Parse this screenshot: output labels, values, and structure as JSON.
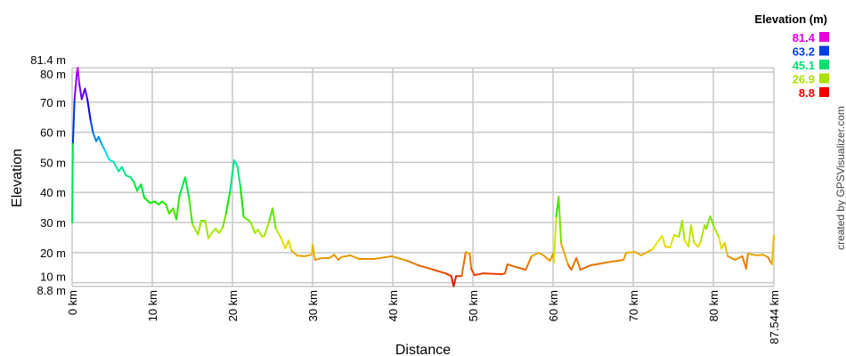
{
  "chart_data": {
    "type": "line",
    "title": "",
    "xlabel": "Distance",
    "ylabel": "Elevation",
    "xlim": [
      0,
      87.544
    ],
    "ylim": [
      8.8,
      81.4
    ],
    "grid": true,
    "x_ticks": [
      "0 km",
      "10 km",
      "20 km",
      "30 km",
      "40 km",
      "50 km",
      "60 km",
      "70 km",
      "80 km",
      "87.544 km"
    ],
    "x_tick_values": [
      0,
      10,
      20,
      30,
      40,
      50,
      60,
      70,
      80,
      87.544
    ],
    "y_ticks": [
      "8.8 m",
      "10 m",
      "20 m",
      "30 m",
      "40 m",
      "50 m",
      "60 m",
      "70 m",
      "80 m",
      "81.4 m"
    ],
    "y_tick_values": [
      8.8,
      10,
      20,
      30,
      40,
      50,
      60,
      70,
      80,
      81.4
    ],
    "legend": {
      "title": "Elevation (m)",
      "placement": "top-right",
      "entries": [
        {
          "label": "81.4",
          "color": "#e000e0"
        },
        {
          "label": "63.2",
          "color": "#0040e0"
        },
        {
          "label": "45.1",
          "color": "#00e070"
        },
        {
          "label": "26.9",
          "color": "#aae000"
        },
        {
          "label": "8.8",
          "color": "#ee0000"
        }
      ]
    },
    "color_scale": "elevation gradient red-yellow-green-blue-magenta",
    "points": [
      [
        0,
        30
      ],
      [
        0.1,
        56.6
      ],
      [
        0.3,
        71
      ],
      [
        0.6,
        80
      ],
      [
        0.7,
        81.4
      ],
      [
        0.9,
        76
      ],
      [
        1.2,
        71
      ],
      [
        1.6,
        74.5
      ],
      [
        1.9,
        71
      ],
      [
        2.3,
        64
      ],
      [
        2.6,
        60
      ],
      [
        3.0,
        57
      ],
      [
        3.3,
        58.5
      ],
      [
        3.7,
        56
      ],
      [
        4.1,
        54
      ],
      [
        4.6,
        51
      ],
      [
        5.2,
        50
      ],
      [
        5.8,
        47
      ],
      [
        6.2,
        48.5
      ],
      [
        6.7,
        45.7
      ],
      [
        7.3,
        45
      ],
      [
        7.7,
        43.5
      ],
      [
        8.1,
        40.6
      ],
      [
        8.6,
        42.7
      ],
      [
        9.0,
        38.3
      ],
      [
        9.7,
        36.5
      ],
      [
        10.3,
        37
      ],
      [
        10.8,
        36
      ],
      [
        11.2,
        37
      ],
      [
        11.7,
        36
      ],
      [
        12.1,
        33
      ],
      [
        12.6,
        34.7
      ],
      [
        13.0,
        31
      ],
      [
        13.4,
        39
      ],
      [
        14.1,
        45
      ],
      [
        14.6,
        38
      ],
      [
        15.0,
        29.5
      ],
      [
        15.7,
        26
      ],
      [
        16.1,
        30.6
      ],
      [
        16.6,
        30.6
      ],
      [
        17.0,
        24.7
      ],
      [
        17.4,
        26.5
      ],
      [
        17.9,
        28
      ],
      [
        18.3,
        26.5
      ],
      [
        18.8,
        28.5
      ],
      [
        19.2,
        33
      ],
      [
        19.7,
        40.4
      ],
      [
        20.2,
        50.7
      ],
      [
        20.6,
        49
      ],
      [
        21.0,
        41.8
      ],
      [
        21.4,
        31.8
      ],
      [
        21.9,
        31
      ],
      [
        22.3,
        30
      ],
      [
        22.8,
        26.5
      ],
      [
        23.2,
        27.6
      ],
      [
        23.7,
        25.3
      ],
      [
        24.0,
        25.6
      ],
      [
        24.6,
        30.6
      ],
      [
        25.0,
        34.7
      ],
      [
        25.4,
        28
      ],
      [
        26.1,
        24.7
      ],
      [
        26.6,
        21.4
      ],
      [
        27.0,
        24
      ],
      [
        27.4,
        20.5
      ],
      [
        28.1,
        19
      ],
      [
        29.0,
        18.8
      ],
      [
        29.9,
        19.3
      ],
      [
        30.0,
        22.6
      ],
      [
        30.3,
        17.6
      ],
      [
        31.2,
        18.2
      ],
      [
        32.1,
        18.2
      ],
      [
        32.7,
        19.3
      ],
      [
        33.2,
        17.6
      ],
      [
        33.6,
        18.5
      ],
      [
        34.7,
        19.1
      ],
      [
        35.8,
        17.9
      ],
      [
        37.7,
        17.9
      ],
      [
        39.9,
        18.8
      ],
      [
        41.8,
        17.3
      ],
      [
        43.2,
        15.8
      ],
      [
        45.1,
        14.3
      ],
      [
        46.6,
        13.1
      ],
      [
        47.3,
        12.2
      ],
      [
        47.6,
        8.8
      ],
      [
        47.9,
        12.2
      ],
      [
        48.6,
        12.2
      ],
      [
        49.1,
        20.2
      ],
      [
        49.6,
        19.6
      ],
      [
        49.8,
        14.6
      ],
      [
        50.2,
        12.5
      ],
      [
        51.3,
        13.1
      ],
      [
        53.6,
        12.8
      ],
      [
        54.0,
        13.1
      ],
      [
        54.3,
        16.1
      ],
      [
        55.4,
        15.2
      ],
      [
        56.6,
        14.3
      ],
      [
        57.3,
        18.8
      ],
      [
        58.2,
        19.9
      ],
      [
        58.8,
        19.1
      ],
      [
        59.6,
        17.3
      ],
      [
        60.0,
        19.6
      ],
      [
        60.1,
        16.7
      ],
      [
        60.4,
        32
      ],
      [
        60.7,
        38.6
      ],
      [
        61.0,
        23.2
      ],
      [
        61.9,
        15.8
      ],
      [
        62.3,
        14.3
      ],
      [
        62.9,
        18.2
      ],
      [
        63.4,
        14.3
      ],
      [
        64.7,
        15.8
      ],
      [
        65.4,
        16.1
      ],
      [
        66.6,
        16.7
      ],
      [
        68.8,
        17.6
      ],
      [
        69.1,
        19.9
      ],
      [
        70.2,
        20.2
      ],
      [
        71.0,
        19.1
      ],
      [
        72.4,
        21.1
      ],
      [
        73.6,
        25.6
      ],
      [
        74.0,
        22
      ],
      [
        74.6,
        21.7
      ],
      [
        75.1,
        25.9
      ],
      [
        75.7,
        25.3
      ],
      [
        76.1,
        30.6
      ],
      [
        76.4,
        24.1
      ],
      [
        76.9,
        22
      ],
      [
        77.2,
        29.1
      ],
      [
        77.6,
        23.2
      ],
      [
        78.1,
        22
      ],
      [
        78.4,
        23.5
      ],
      [
        78.9,
        29.1
      ],
      [
        79.1,
        27.9
      ],
      [
        79.6,
        32.1
      ],
      [
        80.1,
        28.5
      ],
      [
        80.7,
        25
      ],
      [
        81.0,
        21.4
      ],
      [
        81.4,
        23.2
      ],
      [
        81.8,
        18.8
      ],
      [
        82.7,
        17.6
      ],
      [
        83.6,
        18.8
      ],
      [
        84.1,
        14.6
      ],
      [
        84.3,
        19.6
      ],
      [
        85.4,
        19.1
      ],
      [
        86.2,
        19.3
      ],
      [
        86.8,
        18.5
      ],
      [
        87.3,
        16.1
      ],
      [
        87.544,
        25.6
      ]
    ]
  },
  "watermark": "created by GPSVisualizer.com"
}
